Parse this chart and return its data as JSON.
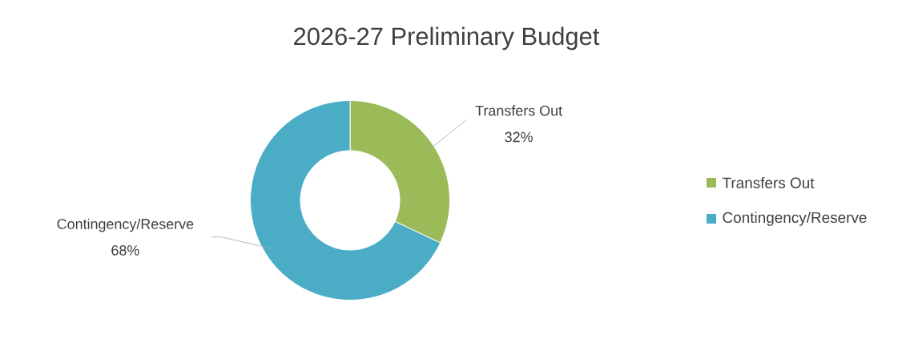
{
  "chart_data": {
    "type": "donut",
    "title": "2026-27 Preliminary Budget",
    "categories": [
      "Transfers Out",
      "Contingency/Reserve"
    ],
    "values": [
      32,
      68
    ],
    "colors": [
      "#9bbb59",
      "#4bacc6"
    ],
    "value_labels": [
      "32%",
      "68%"
    ],
    "legend": "right"
  }
}
